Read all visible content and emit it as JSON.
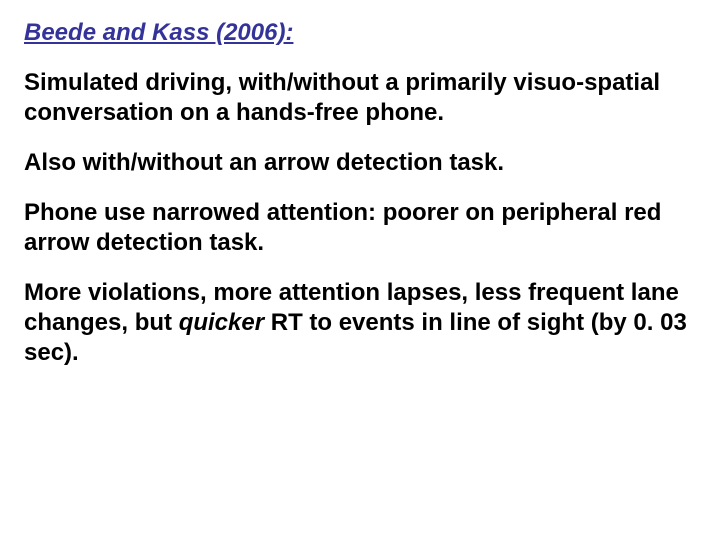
{
  "slide": {
    "heading": "Beede and Kass (2006):",
    "paragraphs": {
      "p1": "Simulated driving, with/without a primarily visuo-spatial conversation on a hands-free phone.",
      "p2": "Also with/without an arrow detection task.",
      "p3": "Phone use narrowed attention: poorer on peripheral red arrow detection task.",
      "p4_pre": "More violations, more attention lapses, less frequent lane changes, but ",
      "p4_em": "quicker",
      "p4_post": " RT to events in line of sight (by 0. 03 sec)."
    }
  },
  "style": {
    "heading_color": "#333399",
    "body_color": "#000000",
    "background": "#ffffff",
    "font_size_pt": 18,
    "font_family": "Arial",
    "slide_width": 720,
    "slide_height": 540
  }
}
